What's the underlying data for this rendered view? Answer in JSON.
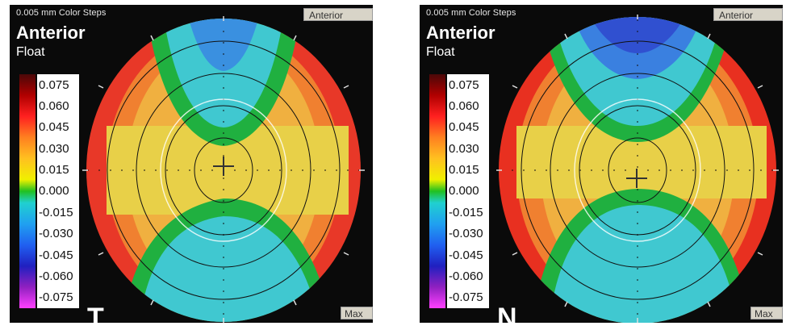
{
  "panels": [
    {
      "header": "0.005 mm Color Steps",
      "title": "Anterior",
      "subtitle": "Float",
      "tab_label": "Anterior",
      "max_label": "Max",
      "corner_letter": "T",
      "scale_labels": [
        "0.075",
        "0.060",
        "0.045",
        "0.030",
        "0.015",
        "0.000",
        "-0.015",
        "-0.030",
        "-0.045",
        "-0.060",
        "-0.075"
      ]
    },
    {
      "header": "0.005 mm Color Steps",
      "title": "Anterior",
      "subtitle": "Float",
      "tab_label": "Anterior",
      "max_label": "Max",
      "corner_letter": "N",
      "scale_labels": [
        "0.075",
        "0.060",
        "0.045",
        "0.030",
        "0.015",
        "0.000",
        "-0.015",
        "-0.030",
        "-0.045",
        "-0.060",
        "-0.075"
      ]
    }
  ],
  "colors": {
    "panel_bg": "#0a0a0a",
    "red": "#e83020",
    "orange": "#f09030",
    "yellow": "#e8d040",
    "green": "#20b040",
    "cyan": "#40c8d0",
    "blue": "#3070e0"
  }
}
